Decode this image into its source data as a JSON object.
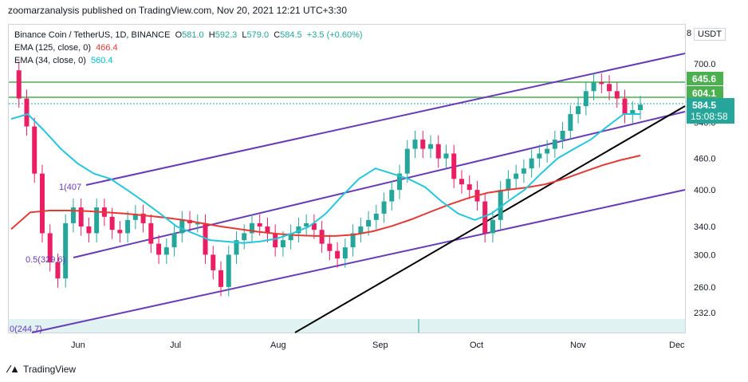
{
  "header": {
    "publisher_line": "zoomarzanalysis published on TradingView.com, Nov 20, 2021 12:21 UTC+3:30"
  },
  "legend": {
    "symbol": "Binance Coin / TetherUS, 1D, BINANCE",
    "o_label": "O",
    "o_val": "581.0",
    "h_label": "H",
    "h_val": "592.3",
    "l_label": "L",
    "l_val": "579.0",
    "c_label": "C",
    "c_val": "584.5",
    "change": "+3.5 (+0.60%)",
    "ema125_label": "EMA (125, close, 0)",
    "ema125_val": "466.4",
    "ema34_label": "EMA (34, close, 0)",
    "ema34_val": "560.4"
  },
  "currency_button": "USDT",
  "currency_button_prefix": "8",
  "fib_labels": {
    "top": "1(407",
    "mid": "0.5(329.6)",
    "bottom": "0(244.7)"
  },
  "price_badges": {
    "level_1": "645.6",
    "level_2": "604.1",
    "last": "584.5",
    "countdown": "15:08:58"
  },
  "footer": {
    "brand": "TradingView"
  },
  "colors": {
    "up": "#26a69a",
    "down": "#e91e63",
    "ema125": "#e53935",
    "ema34": "#26c6da",
    "channel": "#673ab7",
    "trend": "#000000",
    "hline": "#4caf50"
  },
  "chart_data": {
    "type": "line",
    "y_scale": "log",
    "y_ticks": [
      232.0,
      260.0,
      300.0,
      340.0,
      400.0,
      460.0,
      540.0,
      700.0
    ],
    "x_ticks": [
      "Jun",
      "Jul",
      "Aug",
      "Sep",
      "Oct",
      "Nov",
      "Dec"
    ],
    "horizontal_levels": [
      645.6,
      604.1
    ],
    "ohlc_last": {
      "open": 581.0,
      "high": 592.3,
      "low": 579.0,
      "close": 584.5
    },
    "close_series": [
      680,
      600,
      530,
      430,
      330,
      290,
      270,
      345,
      370,
      340,
      330,
      370,
      355,
      335,
      330,
      350,
      360,
      345,
      315,
      300,
      310,
      330,
      350,
      345,
      345,
      300,
      280,
      260,
      300,
      320,
      330,
      345,
      340,
      330,
      310,
      320,
      330,
      340,
      345,
      335,
      315,
      305,
      295,
      310,
      330,
      340,
      350,
      360,
      380,
      400,
      430,
      480,
      500,
      480,
      490,
      460,
      470,
      420,
      410,
      400,
      380,
      330,
      350,
      400,
      420,
      430,
      440,
      460,
      470,
      480,
      500,
      520,
      560,
      580,
      620,
      645,
      640,
      620,
      600,
      560,
      570,
      584
    ],
    "series": [
      {
        "name": "EMA (125, close, 0)",
        "values": [
          336,
          362,
          365,
          365,
          364,
          362,
          360,
          357,
          354,
          350,
          345,
          340,
          336,
          332,
          329,
          327,
          326,
          326,
          328,
          333,
          341,
          351,
          363,
          375,
          386,
          395,
          400,
          404,
          410,
          420,
          433,
          446,
          457,
          466
        ]
      },
      {
        "name": "EMA (34, close, 0)",
        "values": [
          548,
          560,
          520,
          480,
          450,
          430,
          420,
          400,
          380,
          360,
          340,
          330,
          320,
          318,
          316,
          318,
          322,
          330,
          340,
          360,
          390,
          420,
          440,
          430,
          420,
          405,
          380,
          360,
          350,
          360,
          380,
          400,
          430,
          460,
          480,
          500,
          530,
          560,
          560
        ]
      }
    ]
  }
}
